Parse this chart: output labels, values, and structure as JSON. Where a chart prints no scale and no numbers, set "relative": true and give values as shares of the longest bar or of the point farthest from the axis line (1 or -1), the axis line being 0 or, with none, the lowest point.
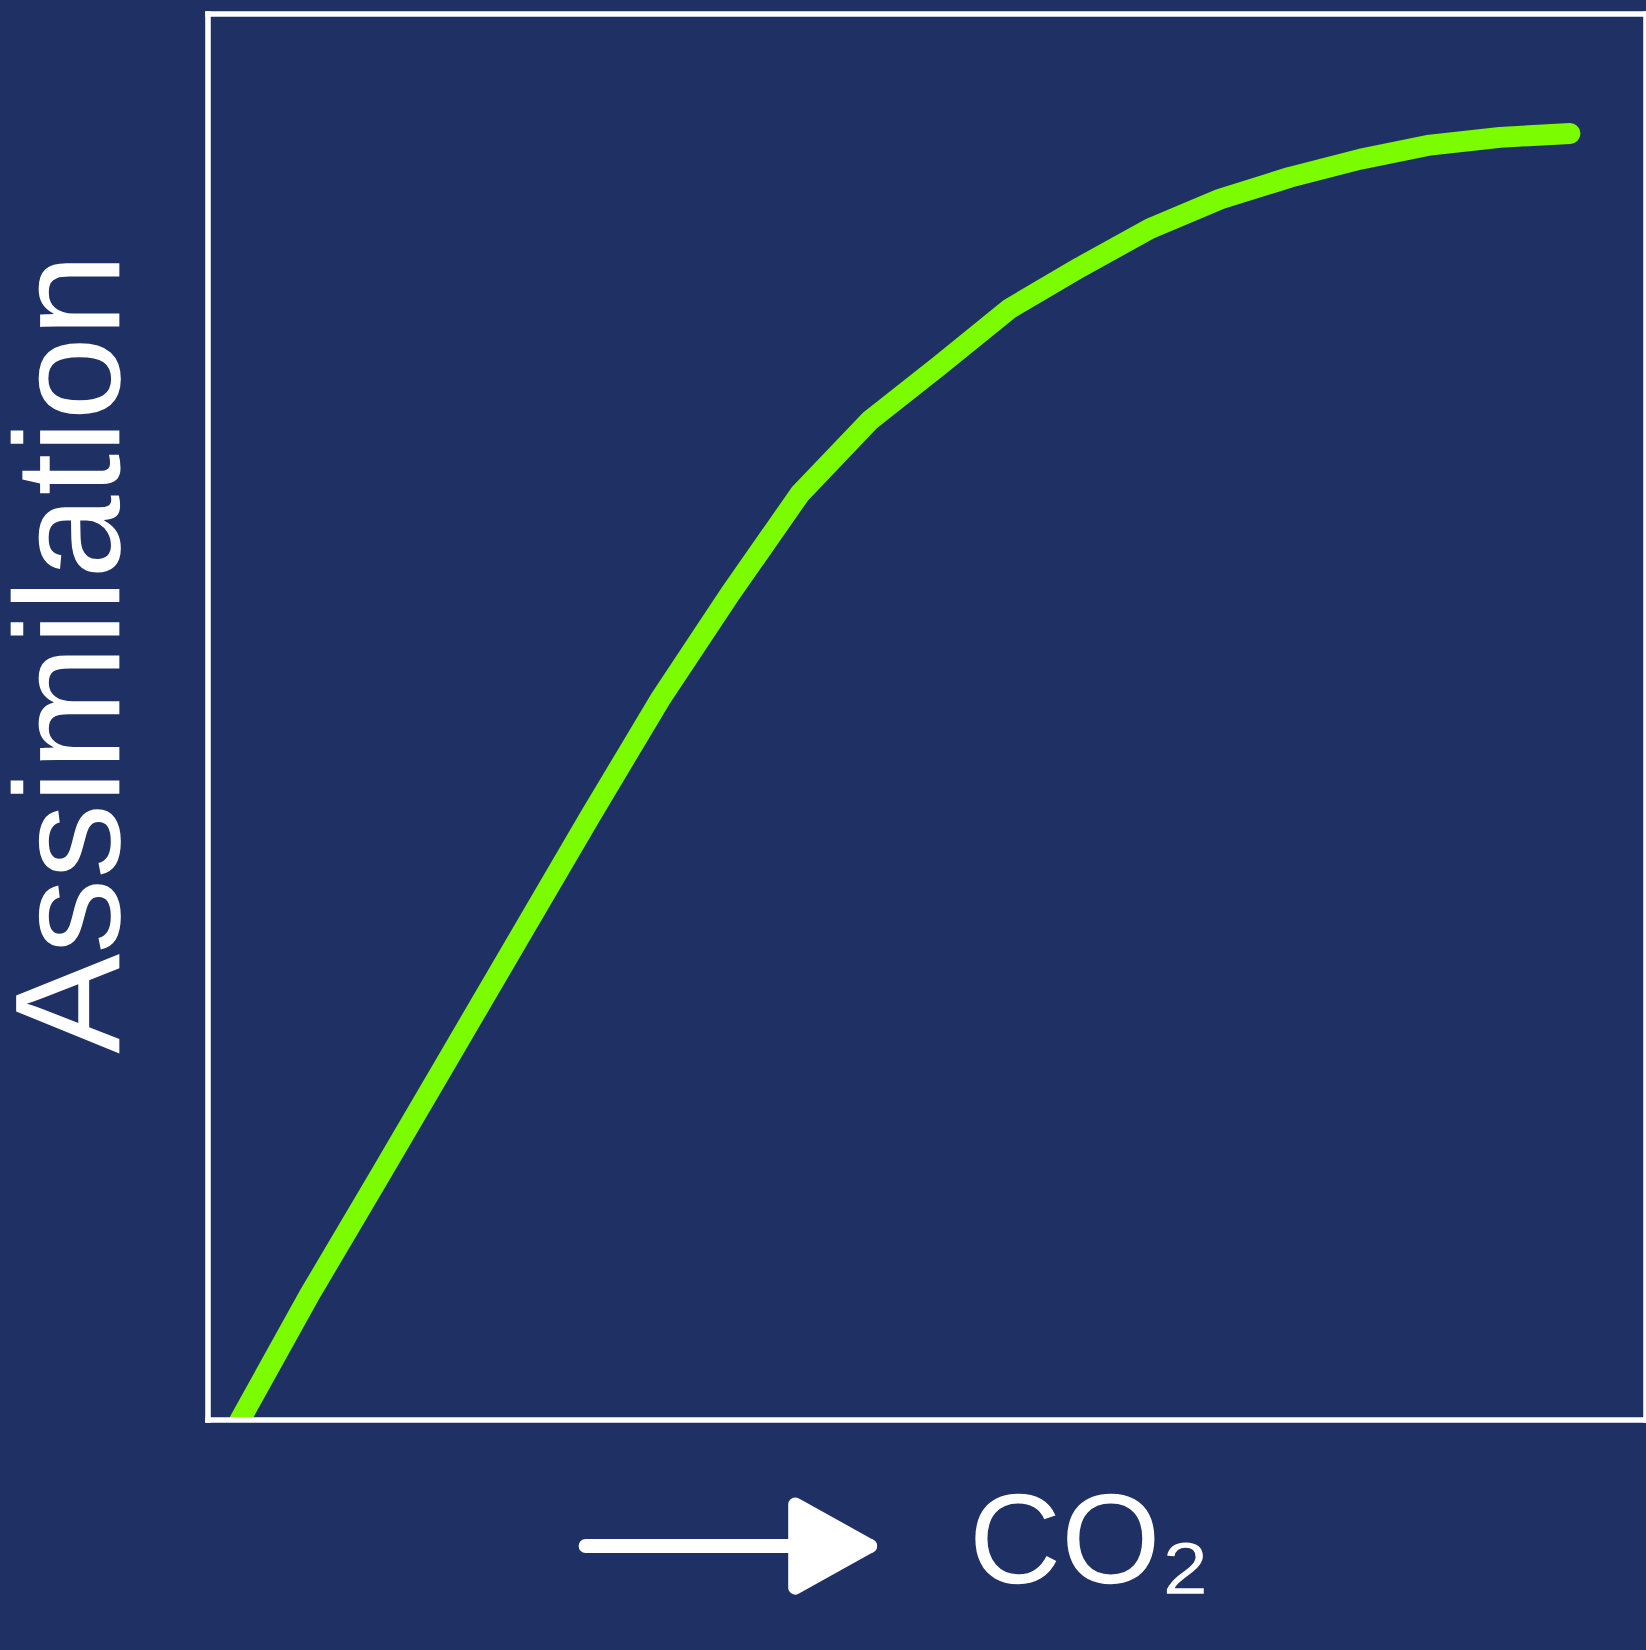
{
  "chart_data": {
    "type": "line",
    "xlabel": "CO₂",
    "ylabel": "Assimilation",
    "relative": true,
    "line_style": "solid",
    "categories": [
      null,
      null,
      null,
      null,
      null,
      null,
      null,
      null,
      null,
      null,
      null,
      null,
      null,
      null,
      null,
      null,
      null,
      null,
      null,
      null
    ],
    "series": [
      {
        "color": "#7cfc00",
        "values": [
          0,
          0.098,
          0.19,
          0.283,
          0.376,
          0.469,
          0.56,
          0.642,
          0.72,
          0.777,
          0.82,
          0.864,
          0.896,
          0.926,
          0.949,
          0.966,
          0.98,
          0.991,
          0.997,
          1
        ]
      }
    ]
  }
}
